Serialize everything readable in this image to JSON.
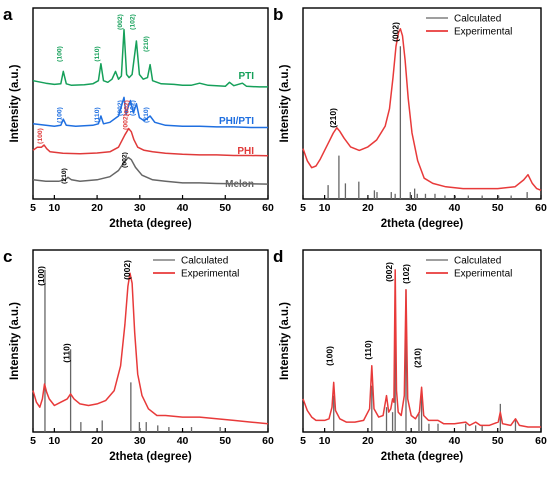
{
  "chart_data": [
    {
      "panel": "a",
      "type": "line",
      "xlabel": "2theta (degree)",
      "ylabel": "Intensity (a.u.)",
      "xlim": [
        5,
        60
      ],
      "xticks": [
        5,
        10,
        20,
        30,
        40,
        50,
        60
      ],
      "y_ticks_shown": false,
      "series": [
        {
          "name": "PTI",
          "color": "#16a05a",
          "offset": 3,
          "x": [
            5,
            8,
            10,
            11.5,
            12.1,
            12.8,
            14,
            17,
            19,
            20.3,
            20.9,
            21.5,
            22.5,
            23.5,
            24.3,
            25,
            25.7,
            26.3,
            26.9,
            27.5,
            28.2,
            29.2,
            29.9,
            30.8,
            31.8,
            32.4,
            33,
            35,
            38,
            40,
            42,
            44,
            46,
            48,
            50,
            51,
            52,
            54,
            55,
            58,
            60
          ],
          "y": [
            0.3,
            0.22,
            0.18,
            0.2,
            0.6,
            0.2,
            0.15,
            0.17,
            0.2,
            0.3,
            0.85,
            0.3,
            0.25,
            0.35,
            0.6,
            0.35,
            0.45,
            1.95,
            0.5,
            0.4,
            0.5,
            1.58,
            0.5,
            0.35,
            0.4,
            0.82,
            0.3,
            0.2,
            0.18,
            0.15,
            0.15,
            0.22,
            0.15,
            0.14,
            0.12,
            0.25,
            0.14,
            0.22,
            0.12,
            0.1,
            0.1
          ]
        },
        {
          "name": "PHI/PTI",
          "color": "#1f6fe0",
          "offset": 2,
          "x": [
            5,
            8,
            10,
            11.5,
            12.1,
            12.8,
            15,
            19,
            20.3,
            20.9,
            21.5,
            23,
            25,
            26.3,
            26.8,
            27.3,
            27.8,
            28.5,
            29.2,
            29.9,
            31,
            32.4,
            33.5,
            36,
            40,
            44,
            48,
            52,
            56,
            60
          ],
          "y": [
            0.2,
            0.15,
            0.12,
            0.15,
            0.35,
            0.15,
            0.12,
            0.15,
            0.2,
            0.45,
            0.2,
            0.25,
            0.45,
            1.05,
            0.5,
            0.75,
            0.95,
            0.55,
            0.85,
            0.4,
            0.3,
            0.45,
            0.25,
            0.15,
            0.12,
            0.12,
            0.1,
            0.1,
            0.08,
            0.08
          ],
          "labels": [
            "(100)",
            "(110)",
            "(002)",
            "(002)",
            "(102)",
            "(210)"
          ]
        },
        {
          "name": "PHI",
          "color": "#e03a3a",
          "offset": 1,
          "x": [
            5,
            6,
            7,
            7.6,
            8.2,
            9,
            12,
            16,
            20,
            23,
            25,
            26.5,
            27.4,
            28,
            28.6,
            29.5,
            31,
            33,
            36,
            40,
            44,
            48,
            52,
            56,
            60
          ],
          "y": [
            0.25,
            0.35,
            0.35,
            0.42,
            0.3,
            0.2,
            0.15,
            0.14,
            0.16,
            0.2,
            0.35,
            0.75,
            0.95,
            0.85,
            0.6,
            0.35,
            0.25,
            0.2,
            0.15,
            0.12,
            0.1,
            0.1,
            0.08,
            0.08,
            0.07
          ],
          "labels": [
            "(100)",
            "(002)"
          ]
        },
        {
          "name": "Melon",
          "color": "#666666",
          "offset": 0,
          "x": [
            5,
            8,
            11,
            12.5,
            13.2,
            14,
            16,
            20,
            23,
            25,
            26.5,
            27.3,
            28,
            29,
            30.5,
            33,
            36,
            40,
            44,
            48,
            52,
            56,
            60
          ],
          "y": [
            0.2,
            0.15,
            0.15,
            0.2,
            0.28,
            0.2,
            0.15,
            0.2,
            0.3,
            0.5,
            0.8,
            0.92,
            0.85,
            0.6,
            0.35,
            0.2,
            0.15,
            0.1,
            0.1,
            0.08,
            0.07,
            0.07,
            0.06
          ],
          "labels": [
            "(210)",
            "(002)"
          ]
        }
      ],
      "peak_labels": [
        {
          "series": "PTI",
          "label": "(100)",
          "x": 12.1
        },
        {
          "series": "PTI",
          "label": "(110)",
          "x": 20.9
        },
        {
          "series": "PTI",
          "label": "(002)",
          "x": 26.3
        },
        {
          "series": "PTI",
          "label": "(102)",
          "x": 29.2
        },
        {
          "series": "PTI",
          "label": "(210)",
          "x": 32.4
        },
        {
          "series": "PHI/PTI",
          "label": "(100)",
          "x": 12.1
        },
        {
          "series": "PHI/PTI",
          "label": "(110)",
          "x": 20.9
        },
        {
          "series": "PHI/PTI",
          "label": "(002)",
          "x": 26.3
        },
        {
          "series": "PHI/PTI",
          "label": "(002)",
          "x": 27.8
        },
        {
          "series": "PHI/PTI",
          "label": "(102)",
          "x": 29.2
        },
        {
          "series": "PHI/PTI",
          "label": "(210)",
          "x": 32.4
        },
        {
          "series": "PHI",
          "label": "(100)",
          "x": 7.6
        },
        {
          "series": "PHI",
          "label": "(002)",
          "x": 27.6
        },
        {
          "series": "Melon",
          "label": "(210)",
          "x": 13.2
        },
        {
          "series": "Melon",
          "label": "(002)",
          "x": 27.3
        }
      ]
    },
    {
      "panel": "b",
      "type": "line",
      "xlabel": "2theta (degree)",
      "ylabel": "Intensity (a.u.)",
      "xlim": [
        5,
        60
      ],
      "ylim": [
        0,
        1.1
      ],
      "xticks": [
        5,
        10,
        20,
        30,
        40,
        50,
        60
      ],
      "legend": "top-right",
      "series": [
        {
          "name": "Calculated",
          "color": "#666666",
          "kind": "stick",
          "x": [
            10.8,
            13.3,
            14.8,
            17.9,
            21.5,
            22.1,
            25.4,
            26.3,
            27.5,
            29.8,
            30.8,
            31.4,
            33.3,
            35.5,
            37.8,
            40.2,
            43.2,
            46.4,
            50.2,
            53.1,
            56.8
          ],
          "y": [
            0.08,
            0.25,
            0.09,
            0.1,
            0.05,
            0.04,
            0.04,
            0.03,
            0.88,
            0.04,
            0.06,
            0.03,
            0.03,
            0.03,
            0.02,
            0.02,
            0.02,
            0.02,
            0.02,
            0.02,
            0.04
          ]
        },
        {
          "name": "Experimental",
          "color": "#e83a3a",
          "kind": "line",
          "x": [
            5,
            6,
            7,
            8,
            9,
            10,
            11,
            12,
            12.8,
            13.5,
            14.5,
            16,
            18,
            20,
            22,
            24,
            25,
            25.8,
            26.5,
            27.1,
            27.5,
            28,
            28.6,
            29.3,
            30.2,
            31.5,
            33,
            35,
            38,
            42,
            46,
            50,
            54,
            56,
            57,
            58,
            59,
            60
          ],
          "y": [
            0.29,
            0.22,
            0.18,
            0.19,
            0.23,
            0.28,
            0.33,
            0.38,
            0.41,
            0.39,
            0.35,
            0.3,
            0.28,
            0.3,
            0.34,
            0.42,
            0.52,
            0.7,
            0.88,
            0.96,
            0.98,
            0.94,
            0.8,
            0.58,
            0.38,
            0.22,
            0.12,
            0.09,
            0.07,
            0.06,
            0.06,
            0.06,
            0.07,
            0.11,
            0.14,
            0.09,
            0.06,
            0.05
          ]
        }
      ],
      "peak_labels": [
        {
          "label": "(210)",
          "x": 12.9
        },
        {
          "label": "(002)",
          "x": 27.3
        }
      ]
    },
    {
      "panel": "c",
      "type": "line",
      "xlabel": "2theta (degree)",
      "ylabel": "Intensity (a.u.)",
      "xlim": [
        5,
        60
      ],
      "ylim": [
        0,
        1.1
      ],
      "xticks": [
        5,
        10,
        20,
        30,
        40,
        50,
        60
      ],
      "legend": "top-right",
      "series": [
        {
          "name": "Calculated",
          "color": "#666666",
          "kind": "stick",
          "x": [
            7.8,
            13.8,
            16.2,
            21.2,
            27.9,
            29.9,
            31.5,
            34.2,
            36.8,
            42.1,
            48.8
          ],
          "y": [
            0.98,
            0.5,
            0.06,
            0.07,
            0.3,
            0.06,
            0.06,
            0.04,
            0.03,
            0.03,
            0.03
          ]
        },
        {
          "name": "Experimental",
          "color": "#e83a3a",
          "kind": "line",
          "x": [
            5,
            5.8,
            6.6,
            7.2,
            7.7,
            8.2,
            8.8,
            10,
            11.5,
            13,
            13.8,
            14.6,
            16,
            18,
            20,
            22,
            24,
            25.5,
            26.5,
            27.2,
            27.7,
            28.2,
            28.8,
            29.5,
            30.5,
            32,
            34,
            36,
            40,
            44,
            48,
            52,
            56,
            60
          ],
          "y": [
            0.25,
            0.18,
            0.15,
            0.2,
            0.29,
            0.24,
            0.2,
            0.16,
            0.18,
            0.2,
            0.23,
            0.2,
            0.17,
            0.16,
            0.17,
            0.19,
            0.25,
            0.4,
            0.65,
            0.88,
            0.96,
            0.9,
            0.6,
            0.35,
            0.22,
            0.14,
            0.1,
            0.1,
            0.09,
            0.09,
            0.08,
            0.07,
            0.06,
            0.05
          ]
        }
      ],
      "peak_labels": [
        {
          "label": "(100)",
          "x": 7.8
        },
        {
          "label": "(110)",
          "x": 13.8
        },
        {
          "label": "(002)",
          "x": 27.9
        }
      ]
    },
    {
      "panel": "d",
      "type": "line",
      "xlabel": "2theta (degree)",
      "ylabel": "Intensity (a.u.)",
      "xlim": [
        5,
        60
      ],
      "ylim": [
        0,
        1.1
      ],
      "xticks": [
        5,
        10,
        20,
        30,
        40,
        50,
        60
      ],
      "legend": "top-right",
      "series": [
        {
          "name": "Calculated",
          "color": "#666666",
          "kind": "stick",
          "x": [
            12.1,
            20.9,
            24.3,
            25.7,
            26.3,
            28.8,
            31.8,
            32.4,
            34.1,
            36.2,
            42.6,
            44.9,
            46.4,
            50.6,
            54.1
          ],
          "y": [
            0.22,
            0.28,
            0.15,
            0.12,
            0.96,
            0.86,
            0.12,
            0.22,
            0.05,
            0.05,
            0.05,
            0.04,
            0.04,
            0.17,
            0.08
          ]
        },
        {
          "name": "Experimental",
          "color": "#e83a3a",
          "kind": "line",
          "x": [
            5,
            6,
            7,
            8,
            9,
            10,
            11,
            11.7,
            12.1,
            12.5,
            13.5,
            15,
            17,
            19,
            20.4,
            20.9,
            21.4,
            22.5,
            23.5,
            24.3,
            24.8,
            25.3,
            25.7,
            26.0,
            26.3,
            26.6,
            27,
            27.7,
            28.4,
            28.8,
            29.2,
            30,
            31,
            31.9,
            32.4,
            32.9,
            34,
            35,
            36.2,
            37.5,
            40,
            42.6,
            43.5,
            44.9,
            46,
            48,
            50.1,
            50.6,
            51.1,
            53,
            54.1,
            55,
            57,
            60
          ],
          "y": [
            0.2,
            0.13,
            0.09,
            0.07,
            0.07,
            0.07,
            0.08,
            0.15,
            0.3,
            0.13,
            0.08,
            0.06,
            0.06,
            0.07,
            0.14,
            0.4,
            0.14,
            0.09,
            0.1,
            0.22,
            0.12,
            0.14,
            0.2,
            0.18,
            0.98,
            0.25,
            0.12,
            0.1,
            0.22,
            0.86,
            0.2,
            0.1,
            0.08,
            0.12,
            0.27,
            0.1,
            0.07,
            0.07,
            0.07,
            0.05,
            0.05,
            0.06,
            0.04,
            0.06,
            0.04,
            0.04,
            0.06,
            0.12,
            0.05,
            0.04,
            0.08,
            0.04,
            0.03,
            0.03
          ]
        }
      ],
      "peak_labels": [
        {
          "label": "(100)",
          "x": 12.1
        },
        {
          "label": "(110)",
          "x": 20.9
        },
        {
          "label": "(002)",
          "x": 26.3
        },
        {
          "label": "(102)",
          "x": 28.8
        },
        {
          "label": "(210)",
          "x": 32.4
        }
      ]
    }
  ]
}
